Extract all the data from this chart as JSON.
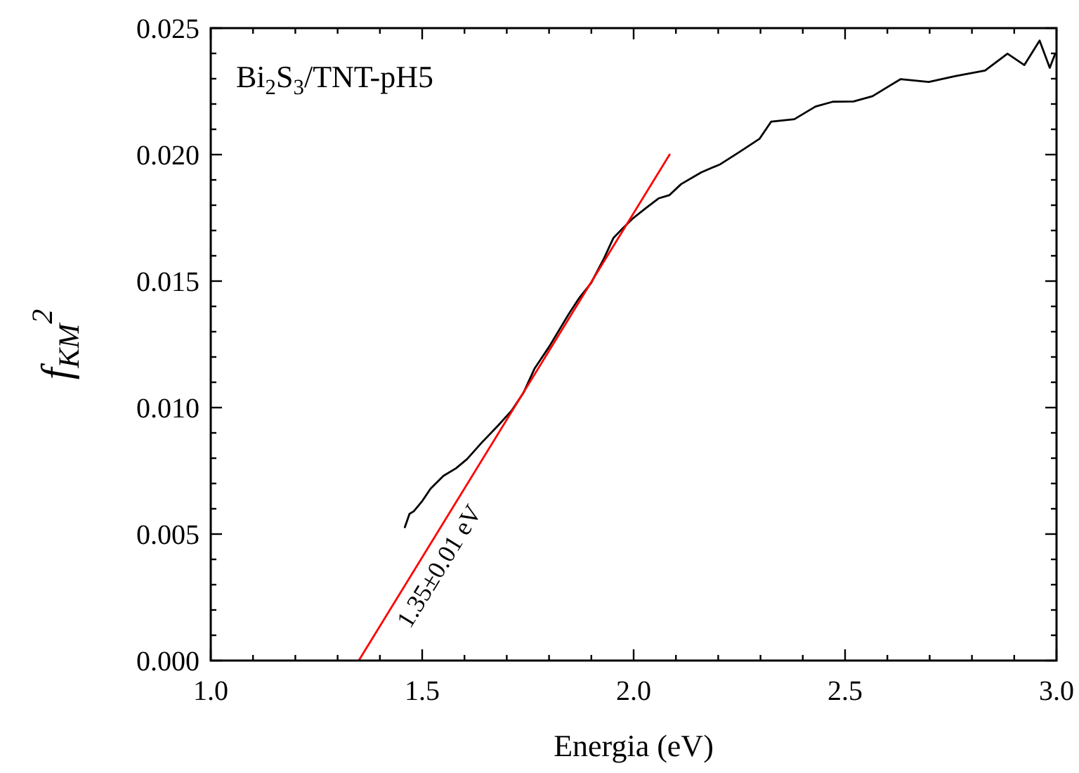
{
  "chart_data": {
    "type": "line",
    "title": "Bi$_{2}$S$_{3}$/TNT-pH5",
    "xlabel": "Energia (eV)",
    "ylabel": "f$_{KM}$$^{2}$",
    "series": [
      {
        "color": "#000000",
        "x": [
          1.459,
          1.47,
          1.48,
          1.499,
          1.52,
          1.55,
          1.58,
          1.606,
          1.64,
          1.68,
          1.711,
          1.74,
          1.766,
          1.8,
          1.846,
          1.87,
          1.899,
          1.93,
          1.952,
          1.975,
          1.999,
          2.03,
          2.059,
          2.085,
          2.112,
          2.16,
          2.205,
          2.25,
          2.298,
          2.325,
          2.38,
          2.43,
          2.471,
          2.52,
          2.565,
          2.631,
          2.698,
          2.76,
          2.831,
          2.884,
          2.924,
          2.96,
          2.984,
          2.997
        ],
        "values": [
          0.00527,
          0.0058,
          0.0059,
          0.00628,
          0.0068,
          0.0073,
          0.0076,
          0.00796,
          0.0086,
          0.0093,
          0.00987,
          0.0106,
          0.01155,
          0.0124,
          0.01368,
          0.0143,
          0.01491,
          0.0159,
          0.0167,
          0.0171,
          0.01749,
          0.0179,
          0.01827,
          0.0184,
          0.01883,
          0.0193,
          0.01962,
          0.0201,
          0.02063,
          0.0213,
          0.0214,
          0.0219,
          0.02209,
          0.0221,
          0.02231,
          0.02298,
          0.02287,
          0.0231,
          0.02332,
          0.02399,
          0.02354,
          0.02451,
          0.02343,
          0.02399
        ]
      },
      {
        "color": "#ff0000",
        "x": [
          1.35,
          2.085
        ],
        "values": [
          0,
          0.02
        ]
      }
    ],
    "xlim": [
      1.0,
      3.0
    ],
    "ylim": [
      0,
      0.025
    ],
    "xticks": [
      {
        "value": 1.0,
        "label": "1.0"
      },
      {
        "value": 1.1,
        "label": null
      },
      {
        "value": 1.2,
        "label": null
      },
      {
        "value": 1.3,
        "label": null
      },
      {
        "value": 1.4,
        "label": null
      },
      {
        "value": 1.5,
        "label": "1.5"
      },
      {
        "value": 1.6,
        "label": null
      },
      {
        "value": 1.7,
        "label": null
      },
      {
        "value": 1.8,
        "label": null
      },
      {
        "value": 1.9,
        "label": null
      },
      {
        "value": 2.0,
        "label": "2.0"
      },
      {
        "value": 2.1,
        "label": null
      },
      {
        "value": 2.2,
        "label": null
      },
      {
        "value": 2.3,
        "label": null
      },
      {
        "value": 2.4,
        "label": null
      },
      {
        "value": 2.5,
        "label": "2.5"
      },
      {
        "value": 2.6,
        "label": null
      },
      {
        "value": 2.7,
        "label": null
      },
      {
        "value": 2.8,
        "label": null
      },
      {
        "value": 2.9,
        "label": null
      },
      {
        "value": 3.0,
        "label": "3.0"
      }
    ],
    "yticks": [
      {
        "value": 0,
        "label": "0.000"
      },
      {
        "value": 0.001,
        "label": null
      },
      {
        "value": 0.002,
        "label": null
      },
      {
        "value": 0.003,
        "label": null
      },
      {
        "value": 0.004,
        "label": null
      },
      {
        "value": 0.005,
        "label": "0.005"
      },
      {
        "value": 0.006,
        "label": null
      },
      {
        "value": 0.007,
        "label": null
      },
      {
        "value": 0.008,
        "label": null
      },
      {
        "value": 0.009,
        "label": null
      },
      {
        "value": 0.01,
        "label": "0.010"
      },
      {
        "value": 0.011,
        "label": null
      },
      {
        "value": 0.012,
        "label": null
      },
      {
        "value": 0.013,
        "label": null
      },
      {
        "value": 0.014,
        "label": null
      },
      {
        "value": 0.015,
        "label": "0.015"
      },
      {
        "value": 0.016,
        "label": null
      },
      {
        "value": 0.017,
        "label": null
      },
      {
        "value": 0.018,
        "label": null
      },
      {
        "value": 0.019,
        "label": null
      },
      {
        "value": 0.02,
        "label": "0.020"
      },
      {
        "value": 0.021,
        "label": null
      },
      {
        "value": 0.022,
        "label": null
      },
      {
        "value": 0.023,
        "label": null
      },
      {
        "value": 0.024,
        "label": null
      },
      {
        "value": 0.025,
        "label": "0.025"
      }
    ],
    "annotations": [
      "1.35±0.01 eV"
    ],
    "grid": false,
    "marker": "none",
    "line_style": "solid"
  }
}
